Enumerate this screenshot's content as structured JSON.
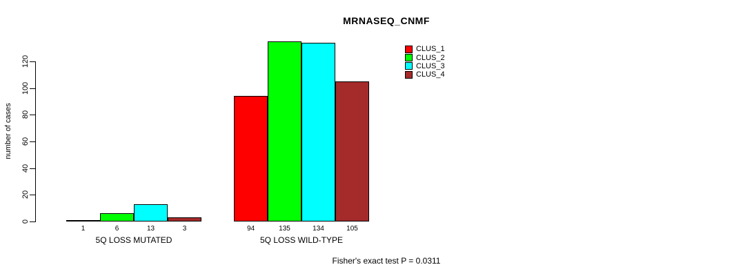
{
  "chart_data": {
    "type": "bar",
    "title": "MRNASEQ_CNMF",
    "ylabel": "number of cases",
    "xlabel": "",
    "categories": [
      "5Q LOSS MUTATED",
      "5Q LOSS WILD-TYPE"
    ],
    "series": [
      {
        "name": "CLUS_1",
        "color": "#ff0000",
        "values": [
          1,
          94
        ]
      },
      {
        "name": "CLUS_2",
        "color": "#00ff00",
        "values": [
          6,
          135
        ]
      },
      {
        "name": "CLUS_3",
        "color": "#00ffff",
        "values": [
          13,
          134
        ]
      },
      {
        "name": "CLUS_4",
        "color": "#a52a2a",
        "values": [
          3,
          105
        ]
      }
    ],
    "bar_value_labels": [
      [
        "1",
        "6",
        "13",
        "3"
      ],
      [
        "94",
        "135",
        "134",
        "105"
      ]
    ],
    "yticks": [
      0,
      20,
      40,
      60,
      80,
      100,
      120
    ],
    "ylim": [
      0,
      140
    ],
    "grid": false,
    "legend_position": "top-right",
    "legend_entries": [
      "CLUS_1",
      "CLUS_2",
      "CLUS_3",
      "CLUS_4"
    ],
    "annotation": "Fisher's exact test P = 0.0311"
  }
}
